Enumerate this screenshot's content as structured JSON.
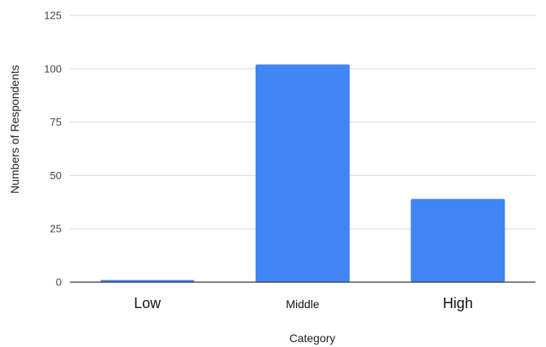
{
  "chart_data": {
    "type": "bar",
    "title": "",
    "xlabel": "Category",
    "ylabel": "Numbers of Respondents",
    "categories": [
      "Low",
      "Middle",
      "High"
    ],
    "values": [
      1,
      102,
      39
    ],
    "ylim": [
      0,
      125
    ],
    "yticks": [
      "0",
      "25",
      "50",
      "75",
      "100",
      "125"
    ],
    "grid": true,
    "legend": "none",
    "bar_color": "#4285f4"
  }
}
